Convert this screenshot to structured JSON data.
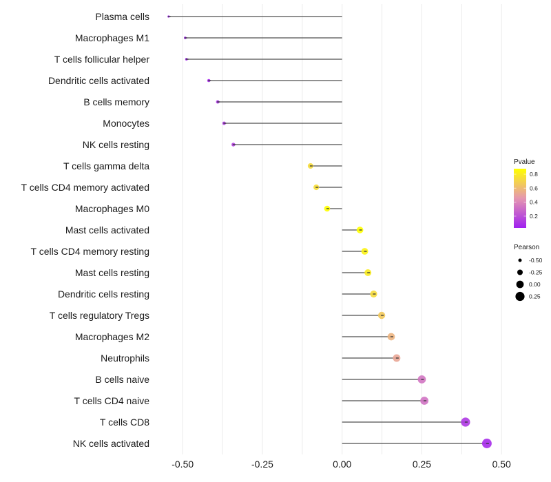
{
  "chart_data": {
    "type": "lollipop",
    "title": "",
    "xlabel": "",
    "ylabel": "",
    "xlim": [
      -0.56,
      0.5
    ],
    "x_ticks": [
      -0.5,
      -0.25,
      0.0,
      0.25,
      0.5
    ],
    "x_tick_labels": [
      "-0.50",
      "-0.25",
      "0.00",
      "0.25",
      "0.50"
    ],
    "grid": true,
    "categories": [
      "Plasma cells",
      "Macrophages M1",
      "T cells follicular helper",
      "Dendritic cells activated",
      "B cells memory",
      "Monocytes",
      "NK cells resting",
      "T cells gamma delta",
      "T cells CD4 memory activated",
      "Macrophages M0",
      "Mast cells activated",
      "T cells CD4 memory resting",
      "Mast cells resting",
      "Dendritic cells resting",
      "T cells regulatory  Tregs ",
      "Macrophages M2",
      "Neutrophils",
      "B cells naive",
      "T cells CD4 naive",
      "T cells CD8",
      "NK cells activated"
    ],
    "pearson": [
      -0.544,
      -0.492,
      -0.488,
      -0.418,
      -0.39,
      -0.37,
      -0.341,
      -0.099,
      -0.081,
      -0.047,
      0.056,
      0.071,
      0.081,
      0.099,
      0.124,
      0.154,
      0.171,
      0.25,
      0.258,
      0.387,
      0.454
    ],
    "pvalue": [
      0.01,
      0.02,
      0.02,
      0.05,
      0.08,
      0.1,
      0.13,
      0.75,
      0.76,
      0.9,
      0.9,
      0.85,
      0.82,
      0.75,
      0.67,
      0.58,
      0.52,
      0.33,
      0.32,
      0.1,
      0.05
    ],
    "legend": {
      "color": {
        "title": "Pvalue",
        "ticks": [
          0.2,
          0.4,
          0.6,
          0.8
        ],
        "tick_labels": [
          "0.2",
          "0.4",
          "0.6",
          "0.8"
        ],
        "range": [
          0.01,
          0.9
        ],
        "low_color": "#A020F0",
        "mid_color": "#E597B0",
        "high_color": "#FFFF00"
      },
      "size": {
        "title": "Pearson",
        "values": [
          -0.5,
          -0.25,
          0.0,
          0.25
        ],
        "labels": [
          "-0.50",
          "-0.25",
          "0.00",
          "0.25"
        ]
      },
      "placement": "right"
    },
    "segment_color": "#4d4d4d",
    "grid_color": "#ebebeb"
  }
}
